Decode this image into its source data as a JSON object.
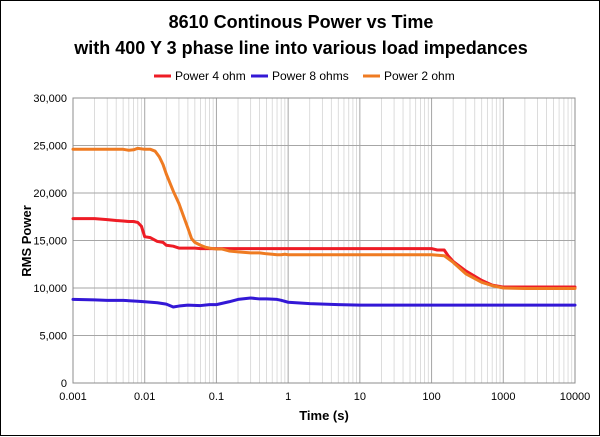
{
  "chart_data": {
    "type": "line",
    "title_line1": "8610 Continous Power vs Time",
    "title_line2": "with 400 Y 3 phase line into various load impedances",
    "xlabel": "Time (s)",
    "ylabel": "RMS Power",
    "x_scale": "log",
    "xlim": [
      0.001,
      10000
    ],
    "ylim": [
      0,
      30000
    ],
    "grid": true,
    "legend_position": "top",
    "x_ticks": [
      "0.001",
      "0.01",
      "0.1",
      "1",
      "10",
      "100",
      "1000",
      "10000"
    ],
    "y_ticks": [
      "0",
      "5,000",
      "10,000",
      "15,000",
      "20,000",
      "25,000",
      "30,000"
    ],
    "series": [
      {
        "name": "Power 4 ohm",
        "color": "#ee1c25",
        "points": [
          [
            0.001,
            17300
          ],
          [
            0.002,
            17300
          ],
          [
            0.003,
            17200
          ],
          [
            0.004,
            17100
          ],
          [
            0.005,
            17050
          ],
          [
            0.006,
            17000
          ],
          [
            0.007,
            17000
          ],
          [
            0.008,
            16900
          ],
          [
            0.009,
            16500
          ],
          [
            0.01,
            15400
          ],
          [
            0.012,
            15300
          ],
          [
            0.015,
            14900
          ],
          [
            0.018,
            14800
          ],
          [
            0.02,
            14500
          ],
          [
            0.025,
            14400
          ],
          [
            0.03,
            14200
          ],
          [
            0.04,
            14200
          ],
          [
            0.05,
            14200
          ],
          [
            0.06,
            14150
          ],
          [
            0.08,
            14150
          ],
          [
            0.1,
            14150
          ],
          [
            1,
            14150
          ],
          [
            10,
            14150
          ],
          [
            100,
            14150
          ],
          [
            120,
            14000
          ],
          [
            150,
            14000
          ],
          [
            170,
            13400
          ],
          [
            200,
            12800
          ],
          [
            300,
            11800
          ],
          [
            500,
            10800
          ],
          [
            700,
            10300
          ],
          [
            1000,
            10100
          ],
          [
            2000,
            10100
          ],
          [
            5000,
            10100
          ],
          [
            10000,
            10100
          ]
        ]
      },
      {
        "name": "Power 8 ohms",
        "color": "#3318d6",
        "points": [
          [
            0.001,
            8800
          ],
          [
            0.002,
            8750
          ],
          [
            0.003,
            8700
          ],
          [
            0.005,
            8700
          ],
          [
            0.008,
            8600
          ],
          [
            0.01,
            8550
          ],
          [
            0.015,
            8450
          ],
          [
            0.02,
            8300
          ],
          [
            0.025,
            8000
          ],
          [
            0.03,
            8100
          ],
          [
            0.04,
            8200
          ],
          [
            0.06,
            8150
          ],
          [
            0.08,
            8250
          ],
          [
            0.1,
            8250
          ],
          [
            0.15,
            8550
          ],
          [
            0.2,
            8800
          ],
          [
            0.3,
            8950
          ],
          [
            0.4,
            8850
          ],
          [
            0.5,
            8850
          ],
          [
            0.7,
            8800
          ],
          [
            0.8,
            8700
          ],
          [
            1,
            8500
          ],
          [
            2,
            8350
          ],
          [
            5,
            8250
          ],
          [
            10,
            8200
          ],
          [
            100,
            8200
          ],
          [
            1000,
            8200
          ],
          [
            10000,
            8200
          ]
        ]
      },
      {
        "name": "Power 2 ohm",
        "color": "#ef7b22",
        "points": [
          [
            0.001,
            24600
          ],
          [
            0.002,
            24600
          ],
          [
            0.005,
            24600
          ],
          [
            0.006,
            24500
          ],
          [
            0.007,
            24550
          ],
          [
            0.008,
            24700
          ],
          [
            0.01,
            24600
          ],
          [
            0.012,
            24600
          ],
          [
            0.014,
            24400
          ],
          [
            0.016,
            23800
          ],
          [
            0.018,
            23000
          ],
          [
            0.02,
            22000
          ],
          [
            0.025,
            20200
          ],
          [
            0.03,
            18900
          ],
          [
            0.035,
            17500
          ],
          [
            0.04,
            16300
          ],
          [
            0.045,
            15200
          ],
          [
            0.05,
            14800
          ],
          [
            0.06,
            14500
          ],
          [
            0.07,
            14300
          ],
          [
            0.08,
            14200
          ],
          [
            0.1,
            14100
          ],
          [
            0.12,
            14100
          ],
          [
            0.15,
            13900
          ],
          [
            0.2,
            13800
          ],
          [
            0.3,
            13700
          ],
          [
            0.4,
            13700
          ],
          [
            0.5,
            13600
          ],
          [
            0.6,
            13550
          ],
          [
            0.7,
            13500
          ],
          [
            0.8,
            13500
          ],
          [
            0.9,
            13550
          ],
          [
            1,
            13500
          ],
          [
            2,
            13500
          ],
          [
            10,
            13500
          ],
          [
            100,
            13500
          ],
          [
            150,
            13400
          ],
          [
            200,
            12700
          ],
          [
            300,
            11500
          ],
          [
            500,
            10600
          ],
          [
            700,
            10250
          ],
          [
            1000,
            10000
          ],
          [
            2000,
            9950
          ],
          [
            5000,
            9950
          ],
          [
            10000,
            9950
          ]
        ]
      }
    ]
  }
}
